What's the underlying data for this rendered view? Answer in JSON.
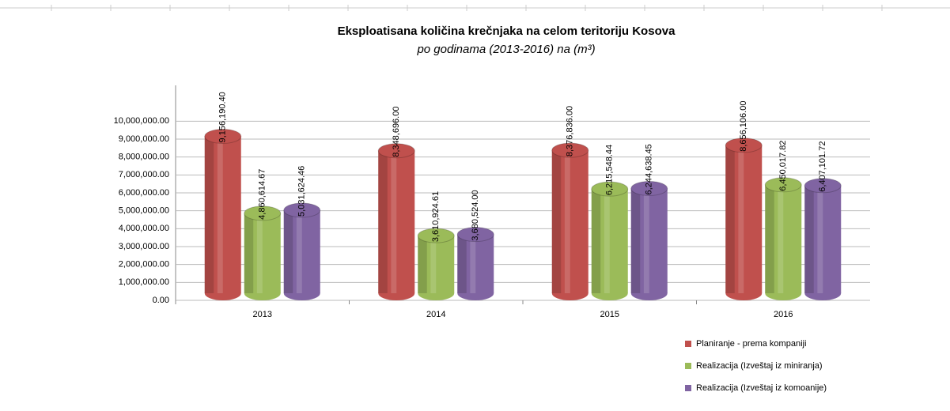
{
  "chart_data": {
    "type": "bar",
    "title": "Eksploatisana količina krečnjaka na celom teritoriju Kosova",
    "subtitle": "po godinama (2013-2016) na (m³)",
    "categories": [
      "2013",
      "2014",
      "2015",
      "2016"
    ],
    "series": [
      {
        "name": "Planiranje - prema kompaniji",
        "color": "#c0504d",
        "values": [
          9156190.4,
          8348696.0,
          8376836.0,
          8656106.0
        ],
        "value_labels": [
          "9,156,190.40",
          "8,348,696.00",
          "8,376,836.00",
          "8,656,106.00"
        ]
      },
      {
        "name": "Realizacija (Izveštaj iz miniranja)",
        "color": "#9bbb59",
        "values": [
          4860614.67,
          3610924.61,
          6215548.44,
          6450017.82
        ],
        "value_labels": [
          "4,860,614.67",
          "3,610,924.61",
          "6,215,548.44",
          "6,450,017.82"
        ]
      },
      {
        "name": "Realizacija (Izveštaj iz komoanije)",
        "color": "#8064a2",
        "values": [
          5031624.46,
          3680524.0,
          6244638.45,
          6407101.72
        ],
        "value_labels": [
          "5,031,624.46",
          "3,680,524.00",
          "6,244,638.45",
          "6,407,101.72"
        ]
      }
    ],
    "ylim": [
      0,
      12000000
    ],
    "yticks": [
      {
        "value": 0,
        "label": "0.00"
      },
      {
        "value": 1000000,
        "label": "1,000,000.00"
      },
      {
        "value": 2000000,
        "label": "2,000,000.00"
      },
      {
        "value": 3000000,
        "label": "3,000,000.00"
      },
      {
        "value": 4000000,
        "label": "4,000,000.00"
      },
      {
        "value": 5000000,
        "label": "5,000,000.00"
      },
      {
        "value": 6000000,
        "label": "6,000,000.00"
      },
      {
        "value": 7000000,
        "label": "7,000,000.00"
      },
      {
        "value": 8000000,
        "label": "8,000,000.00"
      },
      {
        "value": 9000000,
        "label": "9,000,000.00"
      },
      {
        "value": 10000000,
        "label": "10,000,000.00"
      }
    ],
    "grid": true
  }
}
